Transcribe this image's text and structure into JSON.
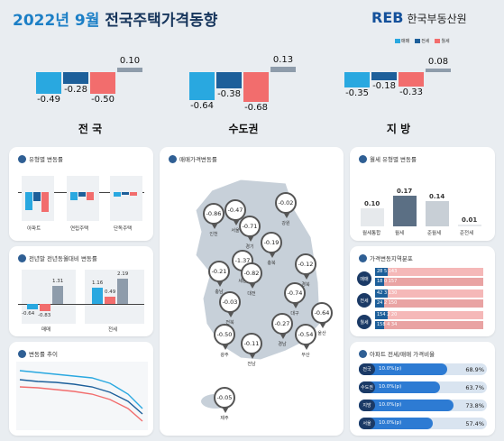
{
  "header": {
    "title_pre": "2022년 9월",
    "title_main": " 전국주택가격동향",
    "logo_mark": "REB",
    "logo_text": "한국부동산원",
    "legend": [
      "매매",
      "전세",
      "월세"
    ],
    "colors": {
      "sale": "#29a8e0",
      "jeonse": "#1d5f9a",
      "rent": "#f26d6d",
      "monthly": "#8e9cab"
    }
  },
  "chart_data": [
    {
      "type": "bar",
      "title": "",
      "categories": [
        "전 국",
        "수도권",
        "지 방"
      ],
      "series": [
        {
          "values": [
            -0.49,
            -0.64,
            -0.35
          ]
        },
        {
          "values": [
            -0.28,
            -0.38,
            -0.18
          ]
        },
        {
          "values": [
            -0.5,
            -0.68,
            -0.33
          ]
        },
        {
          "values": [
            0.1,
            0.13,
            0.08
          ]
        }
      ]
    },
    {
      "type": "bar",
      "title": "월세 유형별 변동률",
      "categories": [
        "월세",
        "준월세",
        "준전세"
      ],
      "values": [
        0.17,
        0.14,
        0.01
      ],
      "extra_label": "월세통합",
      "extra_value": 0.1
    },
    {
      "type": "table",
      "title": "아파트 전세/매매 가격비율",
      "rows": [
        {
          "badge": "전국",
          "label": "10.0%(p)",
          "value": "68.9%",
          "fill": 0.689
        },
        {
          "badge": "수도권",
          "label": "10.0%(p)",
          "value": "63.7%",
          "fill": 0.637
        },
        {
          "badge": "지방",
          "label": "10.0%(p)",
          "value": "73.8%",
          "fill": 0.738
        },
        {
          "badge": "서울",
          "label": "10.0%(p)",
          "value": "57.4%",
          "fill": 0.574
        }
      ]
    }
  ],
  "cards": {
    "by_type": {
      "title": "유형별 변동률",
      "cats": [
        "아파트",
        "연립주택",
        "단독주택"
      ]
    },
    "yoy": {
      "title": "전년말 전년동월대비 변동률",
      "vals": [
        "-0.64",
        "-0.83",
        "1.31",
        "1.16",
        "0.49",
        "2.19"
      ],
      "cats": [
        "매매",
        "전세"
      ]
    },
    "trend": {
      "title": "변동률 추이"
    },
    "map": {
      "title": "매매가격변동률"
    },
    "dist": {
      "title": "가격변동지역분포",
      "rows": [
        {
          "badge": "매매",
          "a": "28",
          "b": "5",
          "c": "143",
          "a2": "18",
          "b2": "0",
          "c2": "157"
        },
        {
          "badge": "전세",
          "a": "42",
          "b": "3",
          "c": "130",
          "a2": "24",
          "b2": "2",
          "c2": "150"
        },
        {
          "badge": "월세",
          "a": "154",
          "b": "2",
          "c": "20",
          "a2": "158",
          "b2": "4",
          "c2": "34"
        }
      ]
    }
  },
  "map_pins": [
    {
      "v": "-0.86",
      "l": "인천"
    },
    {
      "v": "-0.47",
      "l": "서울"
    },
    {
      "v": "-0.02",
      "l": "강원"
    },
    {
      "v": "-0.71",
      "l": "경기"
    },
    {
      "v": "-0.19",
      "l": "충북"
    },
    {
      "v": "-1.37",
      "l": "세종"
    },
    {
      "v": "-0.21",
      "l": "충남"
    },
    {
      "v": "-0.82",
      "l": "대전"
    },
    {
      "v": "-0.12",
      "l": "경북"
    },
    {
      "v": "-0.03",
      "l": "전북"
    },
    {
      "v": "-0.74",
      "l": "대구"
    },
    {
      "v": "-0.64",
      "l": "울산"
    },
    {
      "v": "-0.50",
      "l": "광주"
    },
    {
      "v": "-0.11",
      "l": "전남"
    },
    {
      "v": "-0.27",
      "l": "경남"
    },
    {
      "v": "-0.54",
      "l": "부산"
    },
    {
      "v": "-0.05",
      "l": "제주"
    }
  ]
}
